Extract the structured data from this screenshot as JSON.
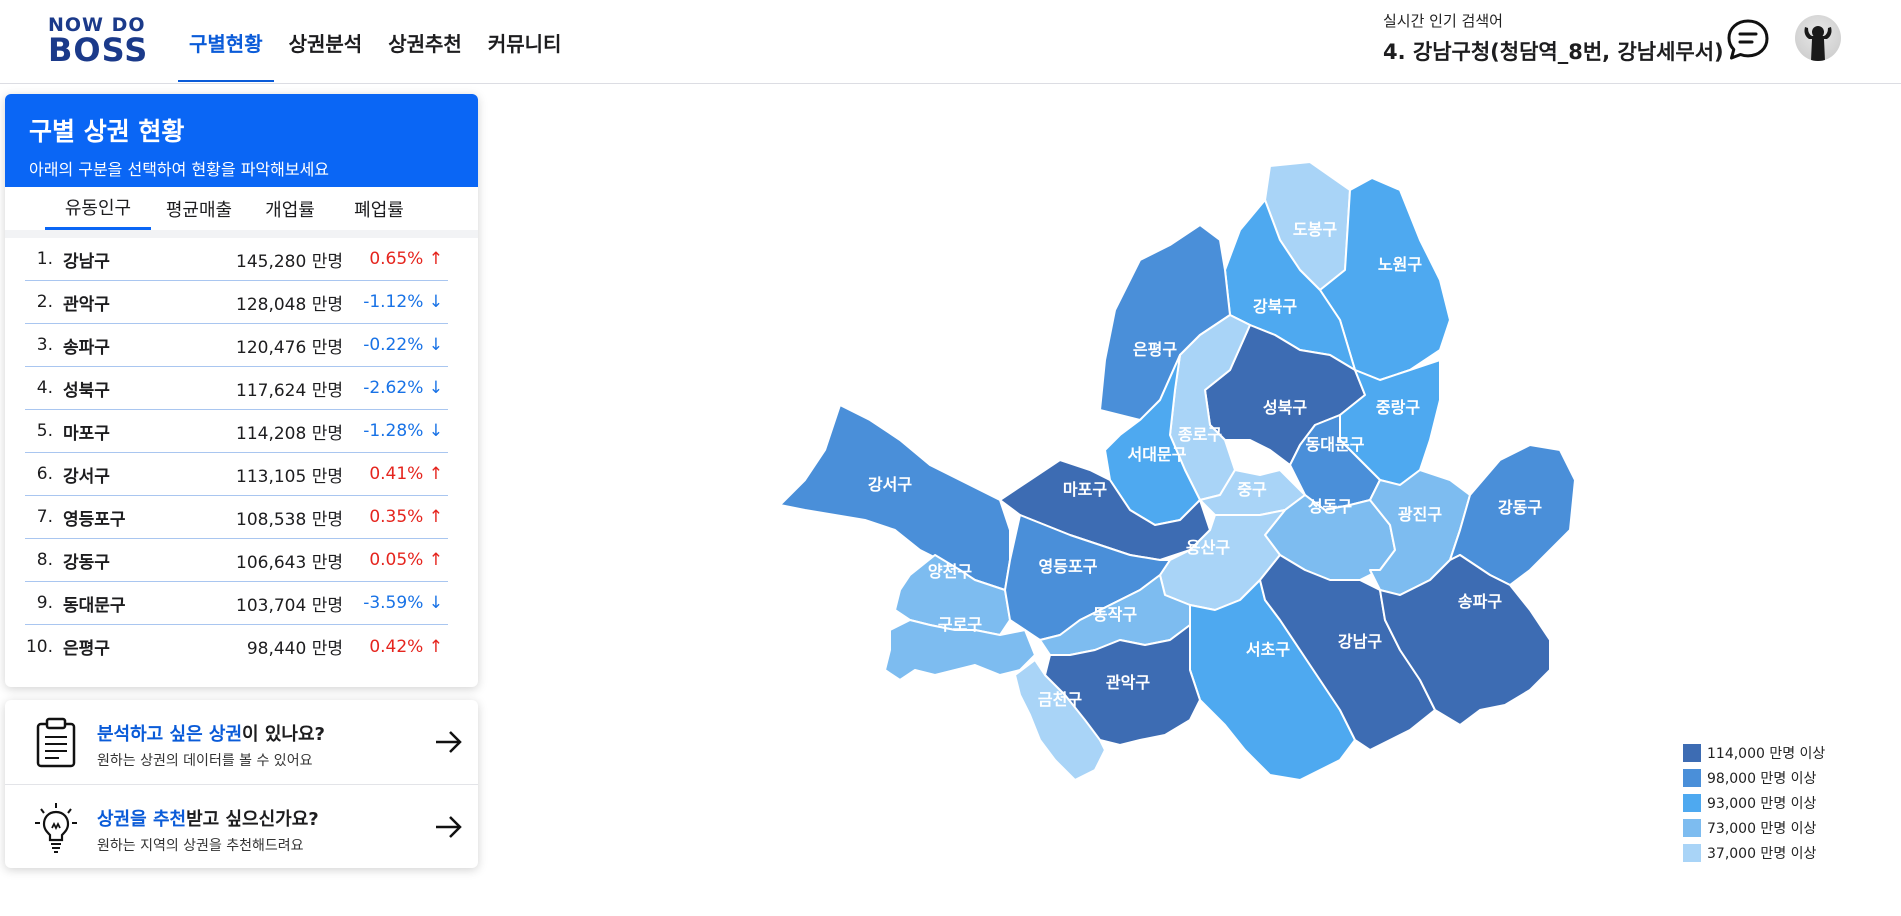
{
  "header": {
    "logo_top": "NOW DO",
    "logo_bottom": "BOSS",
    "nav": [
      "구별현황",
      "상권분석",
      "상권추천",
      "커뮤니티"
    ],
    "trending_label": "실시간 인기 검색어",
    "trending_value": "4. 강남구청(청담역_8번, 강남세무서)"
  },
  "panel": {
    "title": "구별 상권 현황",
    "subtitle": "아래의 구분을 선택하여 현황을 파악해보세요",
    "tabs": [
      "유동인구",
      "평균매출",
      "개업률",
      "폐업률"
    ],
    "active_tab": "유동인구",
    "ranking": [
      {
        "no": "1.",
        "name": "강남구",
        "value": "145,280 만명",
        "rate": "0.65%",
        "dir": "up"
      },
      {
        "no": "2.",
        "name": "관악구",
        "value": "128,048 만명",
        "rate": "-1.12%",
        "dir": "down"
      },
      {
        "no": "3.",
        "name": "송파구",
        "value": "120,476 만명",
        "rate": "-0.22%",
        "dir": "down"
      },
      {
        "no": "4.",
        "name": "성북구",
        "value": "117,624 만명",
        "rate": "-2.62%",
        "dir": "down"
      },
      {
        "no": "5.",
        "name": "마포구",
        "value": "114,208 만명",
        "rate": "-1.28%",
        "dir": "down"
      },
      {
        "no": "6.",
        "name": "강서구",
        "value": "113,105 만명",
        "rate": "0.41%",
        "dir": "up"
      },
      {
        "no": "7.",
        "name": "영등포구",
        "value": "108,538 만명",
        "rate": "0.35%",
        "dir": "up"
      },
      {
        "no": "8.",
        "name": "강동구",
        "value": "106,643 만명",
        "rate": "0.05%",
        "dir": "up"
      },
      {
        "no": "9.",
        "name": "동대문구",
        "value": "103,704 만명",
        "rate": "-3.59%",
        "dir": "down"
      },
      {
        "no": "10.",
        "name": "은평구",
        "value": "98,440 만명",
        "rate": "0.42%",
        "dir": "up"
      }
    ]
  },
  "cards": [
    {
      "title_hl": "분석하고 싶은 상권",
      "title_rest": "이 있나요?",
      "desc": "원하는 상권의 데이터를 볼 수 있어요",
      "icon": "clipboard-icon"
    },
    {
      "title_hl": "상권을 추천",
      "title_rest": "받고 싶으신가요?",
      "desc": "원하는 지역의 상권을 추천해드려요",
      "icon": "lightbulb-icon"
    }
  ],
  "map": {
    "colors": {
      "c1": "#3d6cb3",
      "c2": "#4a8fd9",
      "c3": "#4ea9f0",
      "c4": "#7dbcf0",
      "c5": "#a9d4f7"
    },
    "districts": [
      {
        "name": "도봉구",
        "tier": "c5"
      },
      {
        "name": "노원구",
        "tier": "c3"
      },
      {
        "name": "강북구",
        "tier": "c3"
      },
      {
        "name": "은평구",
        "tier": "c2"
      },
      {
        "name": "성북구",
        "tier": "c1"
      },
      {
        "name": "중랑구",
        "tier": "c3"
      },
      {
        "name": "종로구",
        "tier": "c5"
      },
      {
        "name": "동대문구",
        "tier": "c2"
      },
      {
        "name": "서대문구",
        "tier": "c3"
      },
      {
        "name": "강서구",
        "tier": "c2"
      },
      {
        "name": "마포구",
        "tier": "c1"
      },
      {
        "name": "중구",
        "tier": "c5"
      },
      {
        "name": "성동구",
        "tier": "c4"
      },
      {
        "name": "광진구",
        "tier": "c4"
      },
      {
        "name": "강동구",
        "tier": "c2"
      },
      {
        "name": "용산구",
        "tier": "c5"
      },
      {
        "name": "양천구",
        "tier": "c4"
      },
      {
        "name": "영등포구",
        "tier": "c2"
      },
      {
        "name": "구로구",
        "tier": "c4"
      },
      {
        "name": "동작구",
        "tier": "c4"
      },
      {
        "name": "서초구",
        "tier": "c3"
      },
      {
        "name": "강남구",
        "tier": "c1"
      },
      {
        "name": "송파구",
        "tier": "c1"
      },
      {
        "name": "금천구",
        "tier": "c5"
      },
      {
        "name": "관악구",
        "tier": "c1"
      }
    ]
  },
  "legend": [
    {
      "label": "114,000 만명 이상",
      "tier": "c1"
    },
    {
      "label": "98,000 만명 이상",
      "tier": "c2"
    },
    {
      "label": "93,000 만명 이상",
      "tier": "c3"
    },
    {
      "label": "73,000 만명 이상",
      "tier": "c4"
    },
    {
      "label": "37,000 만명 이상",
      "tier": "c5"
    }
  ]
}
